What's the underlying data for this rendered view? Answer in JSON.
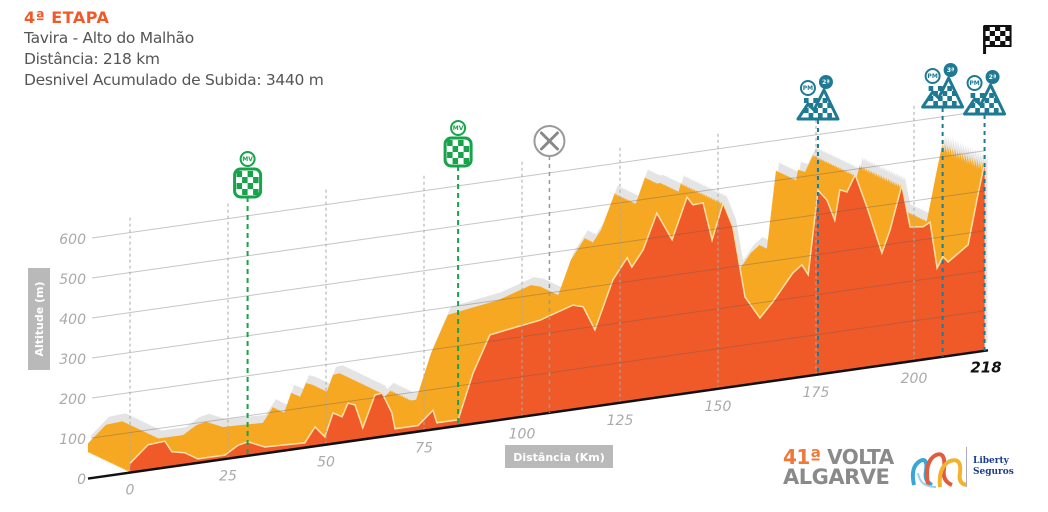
{
  "header": {
    "stage": "4ª ETAPA",
    "route": "Tavira - Alto do Malhão",
    "distance": "Distância: 218 km",
    "climb": "Desnivel Acumulado de Subida: 3440 m"
  },
  "chart_data": {
    "type": "area",
    "title": "",
    "xlabel": "Distância (Km)",
    "ylabel": "Altitude (m)",
    "xlim": [
      0,
      218
    ],
    "ylim": [
      0,
      650
    ],
    "grid": true,
    "x_ticks": [
      "0",
      "25",
      "50",
      "75",
      "100",
      "125",
      "150",
      "175",
      "200"
    ],
    "x_tick_values": [
      0,
      25,
      50,
      75,
      100,
      125,
      150,
      175,
      200
    ],
    "x_end_label": "218",
    "y_ticks": [
      "0",
      "100",
      "200",
      "300",
      "400",
      "500",
      "600"
    ],
    "y_tick_values": [
      0,
      100,
      200,
      300,
      400,
      500,
      600
    ],
    "x": [
      0,
      4.6,
      8.9,
      10.7,
      14,
      17.3,
      20.9,
      24.2,
      27.6,
      30.1,
      34.4,
      39.5,
      44.6,
      47.2,
      49.7,
      51.8,
      54.1,
      55.6,
      57.4,
      59.4,
      62.5,
      64.3,
      66.8,
      67.6,
      73.5,
      77.3,
      78.3,
      83.7,
      87.5,
      91.8,
      97.7,
      104.6,
      113,
      115.6,
      118.6,
      123.2,
      126.8,
      128,
      130.9,
      134.4,
      138.3,
      142.1,
      143.6,
      146.2,
      148.5,
      151.3,
      153.8,
      156.9,
      160.7,
      164,
      169.1,
      171.4,
      173,
      175.5,
      177.8,
      179.8,
      181.1,
      182.9,
      185,
      188,
      191.8,
      193.9,
      196.9,
      199,
      202.3,
      204.1,
      205.9,
      207.4,
      208.7,
      211.7,
      213.8,
      216.3,
      218
    ],
    "altitude": [
      23,
      63,
      66,
      37,
      30,
      10,
      10,
      10,
      30,
      35,
      16,
      14,
      12,
      48,
      20,
      77,
      64,
      96,
      89,
      29,
      107,
      109,
      56,
      15,
      15,
      48,
      15,
      15,
      126,
      216,
      225,
      235,
      261,
      253,
      191,
      310,
      360,
      335,
      374,
      461,
      389,
      490,
      469,
      470,
      374,
      463,
      399,
      220,
      162,
      198,
      263,
      280,
      253,
      461,
      433,
      380,
      454,
      446,
      486,
      401,
      281,
      336,
      444,
      336,
      332,
      341,
      224,
      250,
      235,
      256,
      271,
      392,
      470
    ],
    "colors": {
      "profile_front": "#f05a28",
      "profile_top": "#f7a823",
      "shadow": "#e4e4e4",
      "outline": "#fbe0a8"
    },
    "markers": [
      {
        "km": 30,
        "type": "sprint",
        "icon": "sprint-checkered-icon",
        "label": "MV",
        "color": "#17a34a"
      },
      {
        "km": 83.7,
        "type": "sprint",
        "icon": "sprint-checkered-icon",
        "label": "MV",
        "color": "#17a34a"
      },
      {
        "km": 107,
        "type": "feed",
        "icon": "fork-knife-icon",
        "label": "",
        "color": "#888888"
      },
      {
        "km": 175.5,
        "type": "mountain",
        "icon": "mountain-icon",
        "label": "PM",
        "category": "2ª",
        "color": "#1e7a93"
      },
      {
        "km": 207.3,
        "type": "mountain",
        "icon": "mountain-icon",
        "label": "PM",
        "category": "3ª",
        "color": "#1e7a93"
      },
      {
        "km": 218,
        "type": "mountain",
        "icon": "mountain-icon",
        "label": "PM",
        "category": "2ª",
        "color": "#1e7a93"
      },
      {
        "km": 218,
        "type": "finish",
        "icon": "finish-flag-icon",
        "label": "",
        "color": "#111111"
      }
    ]
  },
  "logo": {
    "line1_num": "41ª",
    "line1_word": "VOLTA",
    "line2": "ALGARVE",
    "sponsor_1": "Liberty",
    "sponsor_2": "Seguros"
  }
}
